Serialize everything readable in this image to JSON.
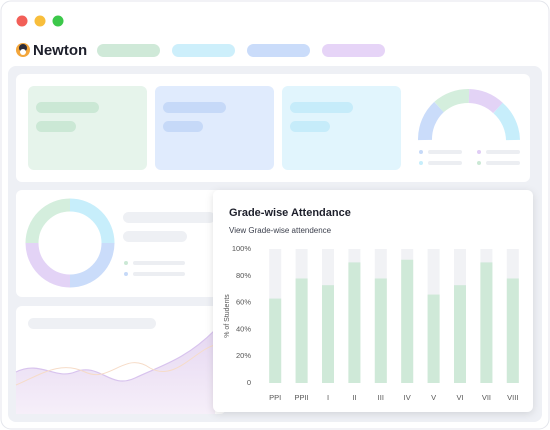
{
  "app": {
    "name": "Newton"
  },
  "chart_data": {
    "type": "bar",
    "title": "Grade-wise Attendance",
    "subtitle": "View Grade-wise attendence",
    "y_label": "% of Students",
    "categories": [
      "PPI",
      "PPII",
      "I",
      "II",
      "III",
      "IV",
      "V",
      "VI",
      "VII",
      "VIII"
    ],
    "values": [
      63,
      78,
      73,
      90,
      78,
      92,
      66,
      73,
      90,
      78
    ],
    "color": "#cfe9d8",
    "track_color": "#f1f2f5",
    "ylim": [
      0,
      100
    ],
    "yticks": [
      0,
      {
        "value": 20,
        "label": "20%"
      },
      {
        "value": 40,
        "label": "40%"
      },
      {
        "value": 60,
        "label": "60%"
      },
      {
        "value": 80,
        "label": "80%"
      },
      {
        "value": 100,
        "label": "100%"
      }
    ],
    "grid": false
  }
}
